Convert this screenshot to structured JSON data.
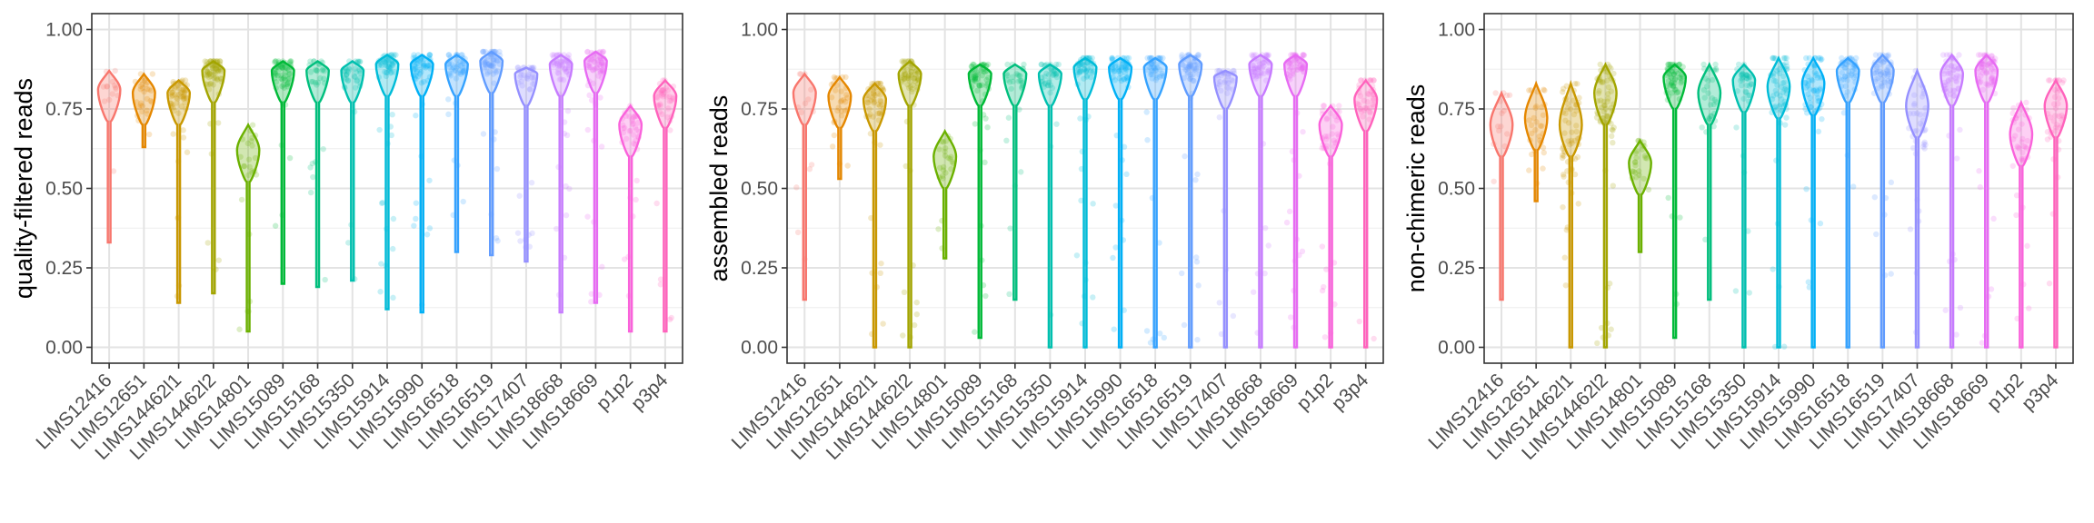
{
  "chart_data": [
    {
      "type": "violin",
      "ylabel": "quality-filtered reads",
      "xlabel": "",
      "ylim": [
        -0.05,
        1.05
      ],
      "yticks": [
        "0.00",
        "0.25",
        "0.50",
        "0.75",
        "1.00"
      ],
      "grid": true,
      "categories": [
        "LIMS12416",
        "LIMS12651",
        "LIMS14462l1",
        "LIMS14462l2",
        "LIMS14801",
        "LIMS15089",
        "LIMS15168",
        "LIMS15350",
        "LIMS15914",
        "LIMS15990",
        "LIMS16518",
        "LIMS16519",
        "LIMS17407",
        "LIMS18668",
        "LIMS18669",
        "p1p2",
        "p3p4"
      ],
      "series": [
        {
          "min": 0.33,
          "max": 0.87,
          "median": 0.81,
          "n": 14
        },
        {
          "min": 0.63,
          "max": 0.86,
          "median": 0.8,
          "n": 30
        },
        {
          "min": 0.14,
          "max": 0.84,
          "median": 0.8,
          "n": 60
        },
        {
          "min": 0.17,
          "max": 0.9,
          "median": 0.87,
          "n": 70
        },
        {
          "min": 0.05,
          "max": 0.7,
          "median": 0.62,
          "n": 25
        },
        {
          "min": 0.2,
          "max": 0.9,
          "median": 0.87,
          "n": 60
        },
        {
          "min": 0.19,
          "max": 0.9,
          "median": 0.87,
          "n": 30
        },
        {
          "min": 0.21,
          "max": 0.9,
          "median": 0.87,
          "n": 40
        },
        {
          "min": 0.12,
          "max": 0.92,
          "median": 0.89,
          "n": 60
        },
        {
          "min": 0.11,
          "max": 0.92,
          "median": 0.89,
          "n": 60
        },
        {
          "min": 0.3,
          "max": 0.92,
          "median": 0.89,
          "n": 50
        },
        {
          "min": 0.29,
          "max": 0.93,
          "median": 0.9,
          "n": 60
        },
        {
          "min": 0.27,
          "max": 0.88,
          "median": 0.86,
          "n": 40
        },
        {
          "min": 0.11,
          "max": 0.92,
          "median": 0.89,
          "n": 60
        },
        {
          "min": 0.14,
          "max": 0.93,
          "median": 0.9,
          "n": 70
        },
        {
          "min": 0.05,
          "max": 0.76,
          "median": 0.7,
          "n": 40
        },
        {
          "min": 0.05,
          "max": 0.84,
          "median": 0.79,
          "n": 40
        }
      ]
    },
    {
      "type": "violin",
      "ylabel": "assembled reads",
      "xlabel": "",
      "ylim": [
        -0.05,
        1.05
      ],
      "yticks": [
        "0.00",
        "0.25",
        "0.50",
        "0.75",
        "1.00"
      ],
      "grid": true,
      "categories": [
        "LIMS12416",
        "LIMS12651",
        "LIMS14462l1",
        "LIMS14462l2",
        "LIMS14801",
        "LIMS15089",
        "LIMS15168",
        "LIMS15350",
        "LIMS15914",
        "LIMS15990",
        "LIMS16518",
        "LIMS16519",
        "LIMS17407",
        "LIMS18668",
        "LIMS18669",
        "p1p2",
        "p3p4"
      ],
      "series": [
        {
          "min": 0.15,
          "max": 0.86,
          "median": 0.8,
          "n": 14
        },
        {
          "min": 0.53,
          "max": 0.85,
          "median": 0.79,
          "n": 30
        },
        {
          "min": 0.0,
          "max": 0.83,
          "median": 0.78,
          "n": 60
        },
        {
          "min": 0.0,
          "max": 0.9,
          "median": 0.86,
          "n": 70
        },
        {
          "min": 0.28,
          "max": 0.68,
          "median": 0.6,
          "n": 25
        },
        {
          "min": 0.03,
          "max": 0.89,
          "median": 0.86,
          "n": 60
        },
        {
          "min": 0.15,
          "max": 0.89,
          "median": 0.86,
          "n": 30
        },
        {
          "min": 0.0,
          "max": 0.89,
          "median": 0.86,
          "n": 40
        },
        {
          "min": 0.0,
          "max": 0.91,
          "median": 0.88,
          "n": 60
        },
        {
          "min": 0.0,
          "max": 0.91,
          "median": 0.88,
          "n": 60
        },
        {
          "min": 0.0,
          "max": 0.91,
          "median": 0.88,
          "n": 50
        },
        {
          "min": 0.0,
          "max": 0.92,
          "median": 0.89,
          "n": 60
        },
        {
          "min": 0.0,
          "max": 0.87,
          "median": 0.85,
          "n": 40
        },
        {
          "min": 0.0,
          "max": 0.92,
          "median": 0.89,
          "n": 60
        },
        {
          "min": 0.0,
          "max": 0.92,
          "median": 0.89,
          "n": 70
        },
        {
          "min": 0.0,
          "max": 0.76,
          "median": 0.7,
          "n": 40
        },
        {
          "min": 0.0,
          "max": 0.84,
          "median": 0.78,
          "n": 40
        }
      ]
    },
    {
      "type": "violin",
      "ylabel": "non-chimeric reads",
      "xlabel": "",
      "ylim": [
        -0.05,
        1.05
      ],
      "yticks": [
        "0.00",
        "0.25",
        "0.50",
        "0.75",
        "1.00"
      ],
      "grid": true,
      "categories": [
        "LIMS12416",
        "LIMS12651",
        "LIMS14462l1",
        "LIMS14462l2",
        "LIMS14801",
        "LIMS15089",
        "LIMS15168",
        "LIMS15350",
        "LIMS15914",
        "LIMS15990",
        "LIMS16518",
        "LIMS16519",
        "LIMS17407",
        "LIMS18668",
        "LIMS18669",
        "p1p2",
        "p3p4"
      ],
      "series": [
        {
          "min": 0.15,
          "max": 0.8,
          "median": 0.7,
          "n": 14
        },
        {
          "min": 0.46,
          "max": 0.83,
          "median": 0.72,
          "n": 30
        },
        {
          "min": 0.0,
          "max": 0.83,
          "median": 0.7,
          "n": 60
        },
        {
          "min": 0.0,
          "max": 0.89,
          "median": 0.8,
          "n": 70
        },
        {
          "min": 0.3,
          "max": 0.65,
          "median": 0.58,
          "n": 25
        },
        {
          "min": 0.03,
          "max": 0.89,
          "median": 0.85,
          "n": 60
        },
        {
          "min": 0.15,
          "max": 0.89,
          "median": 0.8,
          "n": 30
        },
        {
          "min": 0.0,
          "max": 0.89,
          "median": 0.84,
          "n": 40
        },
        {
          "min": 0.0,
          "max": 0.91,
          "median": 0.82,
          "n": 60
        },
        {
          "min": 0.0,
          "max": 0.91,
          "median": 0.83,
          "n": 60
        },
        {
          "min": 0.0,
          "max": 0.91,
          "median": 0.87,
          "n": 50
        },
        {
          "min": 0.0,
          "max": 0.92,
          "median": 0.87,
          "n": 60
        },
        {
          "min": 0.0,
          "max": 0.87,
          "median": 0.76,
          "n": 40
        },
        {
          "min": 0.0,
          "max": 0.92,
          "median": 0.86,
          "n": 60
        },
        {
          "min": 0.0,
          "max": 0.92,
          "median": 0.87,
          "n": 70
        },
        {
          "min": 0.0,
          "max": 0.77,
          "median": 0.67,
          "n": 40
        },
        {
          "min": 0.0,
          "max": 0.84,
          "median": 0.76,
          "n": 40
        }
      ]
    }
  ],
  "colors": [
    "#F8766D",
    "#E58700",
    "#C99800",
    "#A3A500",
    "#6BB100",
    "#00BA38",
    "#00BF7D",
    "#00C0AF",
    "#00BCD8",
    "#00B0F6",
    "#35A2FF",
    "#619CFF",
    "#9590FF",
    "#C77CFF",
    "#E76BF3",
    "#FA62DB",
    "#FF62BC"
  ]
}
